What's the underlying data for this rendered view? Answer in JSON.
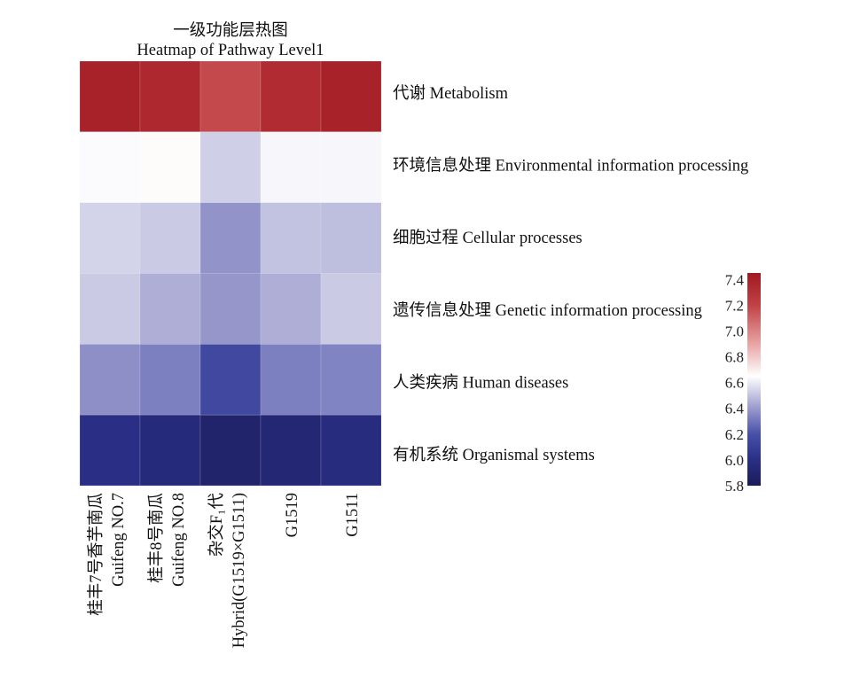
{
  "chart_data": {
    "type": "heatmap",
    "title": "一级功能层热图",
    "subtitle": "Heatmap of Pathway Level1",
    "rows": [
      "代谢 Metabolism",
      "环境信息处理 Environmental information processing",
      "细胞过程 Cellular processes",
      "遗传信息处理 Genetic information processing",
      "人类疾病 Human diseases",
      "有机系统 Organismal systems"
    ],
    "columns": [
      {
        "lines": [
          "桂丰7号香芋南瓜",
          "Guifeng NO.7"
        ]
      },
      {
        "lines": [
          "桂丰8号南瓜",
          "Guifeng NO.8"
        ]
      },
      {
        "lines": [
          "杂交F₁代",
          "Hybrid(G1519×G1511)"
        ]
      },
      {
        "lines": [
          "G1519"
        ]
      },
      {
        "lines": [
          "G1511"
        ]
      }
    ],
    "values": [
      [
        7.39,
        7.35,
        7.18,
        7.33,
        7.39
      ],
      [
        6.64,
        6.66,
        6.53,
        6.63,
        6.63
      ],
      [
        6.54,
        6.52,
        6.38,
        6.5,
        6.49
      ],
      [
        6.52,
        6.45,
        6.39,
        6.45,
        6.52
      ],
      [
        6.37,
        6.33,
        6.15,
        6.33,
        6.34
      ],
      [
        6.0,
        5.95,
        5.88,
        5.92,
        5.97
      ]
    ],
    "colorbar": {
      "placement": "right",
      "range": [
        5.8,
        7.45
      ],
      "ticks": [
        7.4,
        7.2,
        7.0,
        6.8,
        6.6,
        6.4,
        6.2,
        6.0,
        5.8
      ],
      "tick_labels": [
        "7.4",
        "7.2",
        "7.0",
        "6.8",
        "6.6",
        "6.4",
        "6.2",
        "6.0",
        "5.8"
      ]
    },
    "colorscale": [
      [
        5.8,
        "#1b1c58"
      ],
      [
        6.0,
        "#2a2f85"
      ],
      [
        6.2,
        "#4750a8"
      ],
      [
        6.4,
        "#9a9acd"
      ],
      [
        6.65,
        "#ffffff"
      ],
      [
        6.9,
        "#e8a4a4"
      ],
      [
        7.2,
        "#c04246"
      ],
      [
        7.45,
        "#a11820"
      ]
    ],
    "grid": false
  }
}
